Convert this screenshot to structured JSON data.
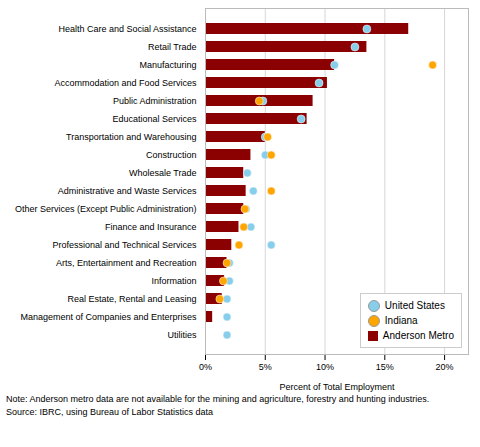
{
  "chart_data": {
    "type": "bar",
    "orientation": "horizontal",
    "categories": [
      "Utilities",
      "Management of Companies and Enterprises",
      "Real Estate, Rental and Leasing",
      "Information",
      "Arts, Entertainment and Recreation",
      "Professional and Technical Services",
      "Finance and Insurance",
      "Other Services (Except Public Administration)",
      "Administrative and Waste Services",
      "Wholesale Trade",
      "Construction",
      "Transportation and Warehousing",
      "Educational Services",
      "Public Administration",
      "Accommodation and Food Services",
      "Manufacturing",
      "Retail Trade",
      "Health Care and Social Assistance"
    ],
    "series": [
      {
        "name": "United States",
        "type": "scatter",
        "marker": "o",
        "color": "#87CEEB",
        "values": [
          1.8,
          1.8,
          1.8,
          2.0,
          2.0,
          5.5,
          3.8,
          3.4,
          4.0,
          3.5,
          5.0,
          5.0,
          8.0,
          4.8,
          9.5,
          10.8,
          12.5,
          13.5
        ]
      },
      {
        "name": "Indiana",
        "type": "scatter",
        "marker": "o",
        "color": "#FFA500",
        "values": [
          null,
          null,
          1.2,
          1.5,
          1.8,
          2.8,
          3.2,
          3.3,
          5.5,
          null,
          5.5,
          5.2,
          null,
          4.5,
          null,
          19.0,
          null,
          null
        ]
      },
      {
        "name": "Anderson Metro",
        "type": "bar",
        "color": "#8B0000",
        "values": [
          null,
          0.6,
          1.4,
          1.6,
          1.8,
          2.2,
          2.8,
          3.2,
          3.4,
          3.2,
          3.8,
          5.0,
          8.5,
          9.0,
          10.2,
          10.8,
          13.5,
          17.0
        ]
      }
    ],
    "x_label": "Percent of Total Employment",
    "xlim": [
      0,
      22
    ],
    "xticks": [
      {
        "value": 0,
        "label": "0%"
      },
      {
        "value": 5,
        "label": "5%"
      },
      {
        "value": 10,
        "label": "10%"
      },
      {
        "value": 15,
        "label": "15%"
      },
      {
        "value": 20,
        "label": "20%"
      }
    ],
    "grid": true,
    "legend": "lower right",
    "annotations": [
      "Note: Anderson metro data are not available for the mining and agriculture, forestry and hunting industries.",
      "Source: IBRC, using Bureau of Labor Statistics data"
    ]
  }
}
